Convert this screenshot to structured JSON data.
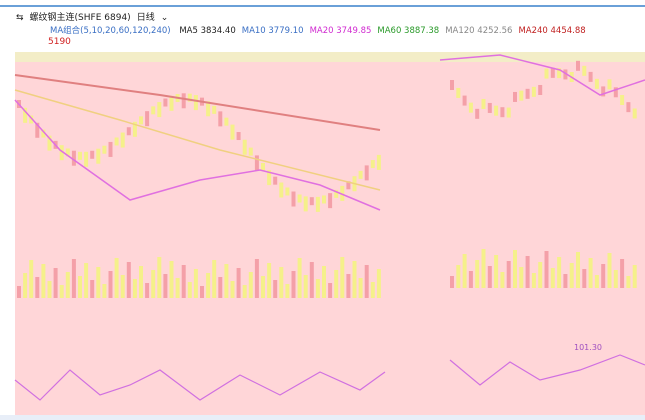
{
  "header": {
    "icon": "⇆",
    "title": "螺纹钢主连(SHFE 6894)",
    "period": "日线"
  },
  "legend": {
    "group": "MA组合(5,10,20,60,120,240)",
    "items": [
      {
        "label": "MA5 3834.40",
        "color": "#222222"
      },
      {
        "label": "MA10 3779.10",
        "color": "#3a6fc4"
      },
      {
        "label": "MA20 3749.85",
        "color": "#d02ad0"
      },
      {
        "label": "MA60 3887.38",
        "color": "#2a9a2a"
      },
      {
        "label": "MA120 4252.56",
        "color": "#888888"
      },
      {
        "label": "MA240 4454.88",
        "color": "#c02020"
      }
    ]
  },
  "price_label": "5190",
  "indicator_label": "101.30"
}
